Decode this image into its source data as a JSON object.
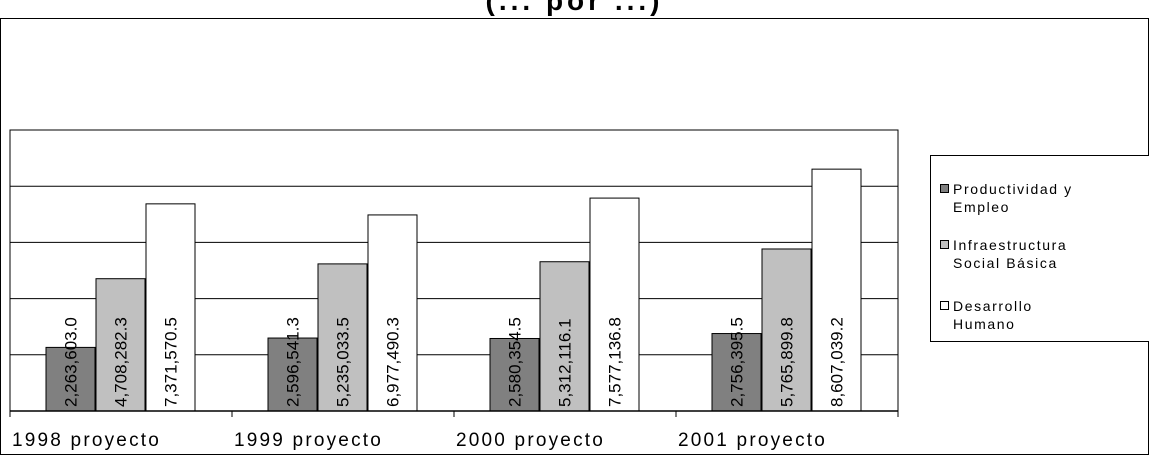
{
  "chart_data": {
    "type": "bar",
    "title": "(... por ...)",
    "categories": [
      "1998 proyecto",
      "1999 proyecto",
      "2000 proyecto",
      "2001 proyecto"
    ],
    "series": [
      {
        "name": "Productividad y Empleo",
        "color": "#808080",
        "values": [
          2263603,
          2596541,
          2580354,
          2756395
        ],
        "labels": [
          "2,263,603.0",
          "2,596,541.3",
          "2,580,354.5",
          "2,756,395.5"
        ]
      },
      {
        "name": "Infraestructura Social Básica",
        "color": "#c0c0c0",
        "values": [
          4708282,
          5235033,
          5312116,
          5765899
        ],
        "labels": [
          "4,708,282.3",
          "5,235,033.5",
          "5,312,116.1",
          "5,765,899.8"
        ]
      },
      {
        "name": "Desarrollo Humano",
        "color": "#ffffff",
        "values": [
          7371570,
          6977490,
          7577136,
          8607039
        ],
        "labels": [
          "7,371,570.5",
          "6,977,490.3",
          "7,577,136.8",
          "8,607,039.2"
        ]
      }
    ],
    "ylim": [
      0,
      10000000
    ],
    "grid": true,
    "legend_position": "right"
  }
}
